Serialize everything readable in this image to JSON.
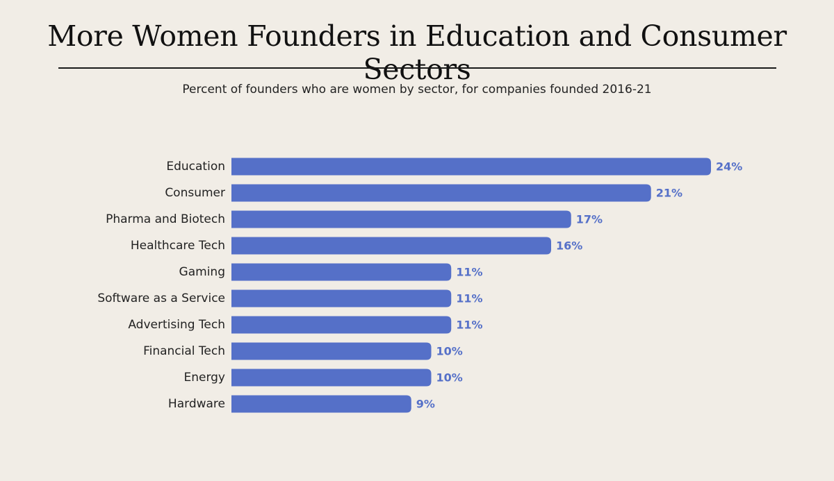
{
  "title": "More Women Founders in Education and Consumer Sectors",
  "subtitle": "Percent of founders who are women by sector, for companies founded 2016-21",
  "colors": {
    "background": "#f1ede6",
    "bar": "#5570c8",
    "value_label": "#5570c8",
    "text": "#222222"
  },
  "chart_data": {
    "type": "bar",
    "orientation": "horizontal",
    "title": "More Women Founders in Education and Consumer Sectors",
    "subtitle": "Percent of founders who are women by sector, for companies founded 2016-21",
    "categories": [
      "Education",
      "Consumer",
      "Pharma and Biotech",
      "Healthcare Tech",
      "Gaming",
      "Software as a Service",
      "Advertising Tech",
      "Financial Tech",
      "Energy",
      "Hardware"
    ],
    "values": [
      24,
      21,
      17,
      16,
      11,
      11,
      11,
      10,
      10,
      9
    ],
    "value_labels": [
      "24%",
      "21%",
      "17%",
      "16%",
      "11%",
      "11%",
      "11%",
      "10%",
      "10%",
      "9%"
    ],
    "unit": "%",
    "xlim": [
      0,
      24
    ],
    "grid": false,
    "legend": "none"
  }
}
